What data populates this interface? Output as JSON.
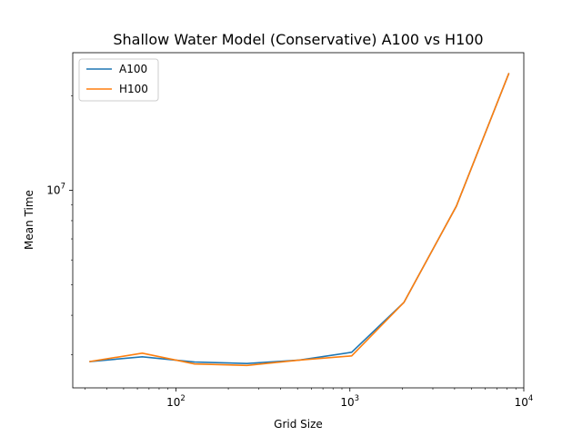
{
  "chart_data": {
    "type": "line",
    "title": "Shallow Water Model (Conservative) A100 vs H100",
    "xlabel": "Grid Size",
    "ylabel": "Mean Time",
    "xscale": "log",
    "yscale": "log",
    "xlim": [
      25.5,
      10000
    ],
    "ylim": [
      2350000,
      27400000
    ],
    "grid": false,
    "legend_position": "top-left",
    "x": [
      32,
      64,
      128,
      256,
      512,
      1024,
      2048,
      4096,
      8192
    ],
    "series": [
      {
        "name": "A100",
        "color": "#1f77b4",
        "values": [
          2850000,
          2950000,
          2840000,
          2810000,
          2880000,
          3050000,
          4400000,
          8900000,
          23500000
        ]
      },
      {
        "name": "H100",
        "color": "#ff7f0e",
        "values": [
          2850000,
          3030000,
          2800000,
          2770000,
          2880000,
          2970000,
          4400000,
          8900000,
          23500000
        ]
      }
    ],
    "x_major_ticks": [
      {
        "value": 100,
        "base": "10",
        "exp": "2"
      },
      {
        "value": 1000,
        "base": "10",
        "exp": "3"
      },
      {
        "value": 10000,
        "base": "10",
        "exp": "4"
      }
    ],
    "y_major_ticks": [
      {
        "value": 10000000,
        "base": "10",
        "exp": "7"
      }
    ]
  }
}
